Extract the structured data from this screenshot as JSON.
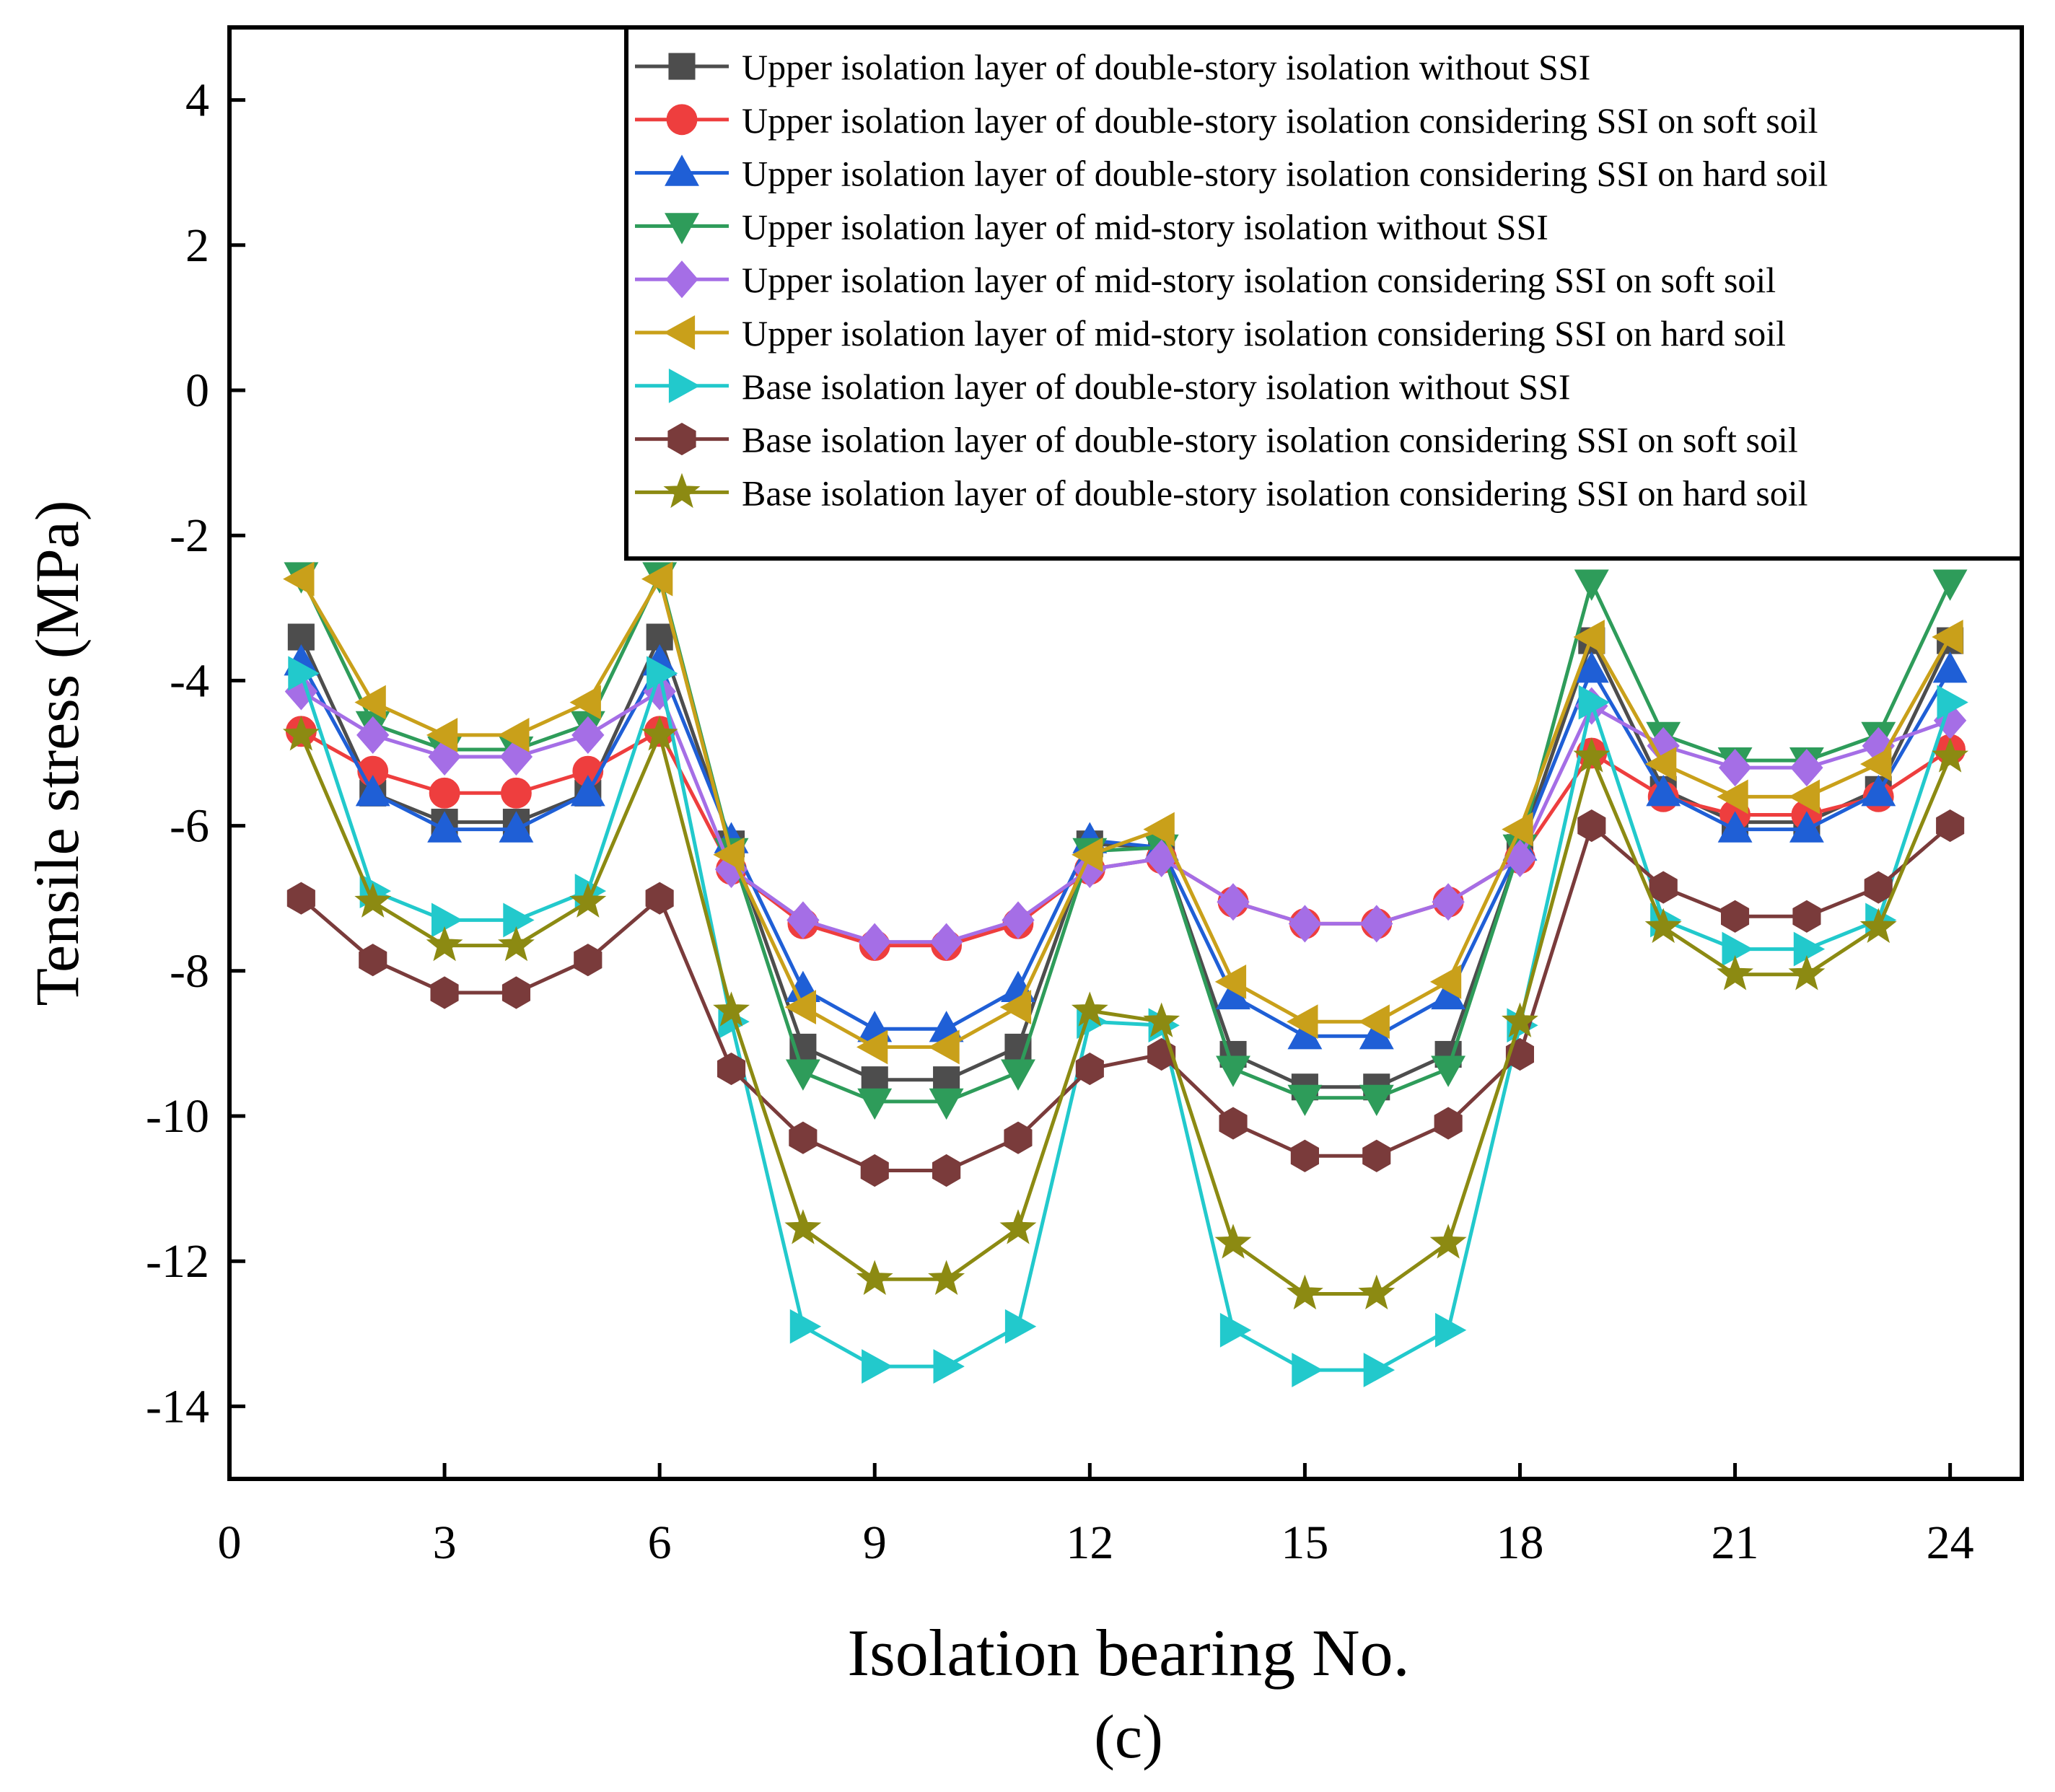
{
  "chart_data": {
    "type": "line",
    "xlabel": "Isolation bearing No.",
    "ylabel": "Tensile stress (MPa)",
    "caption": "(c)",
    "xlim": [
      0,
      25
    ],
    "ylim": [
      -15,
      5
    ],
    "xticks": [
      0,
      3,
      6,
      9,
      12,
      15,
      18,
      21,
      24
    ],
    "yticks": [
      4,
      2,
      0,
      -2,
      -4,
      -6,
      -8,
      -10,
      -12,
      -14
    ],
    "xtick_labels": [
      "0",
      "3",
      "6",
      "9",
      "12",
      "15",
      "18",
      "21",
      "24"
    ],
    "ytick_labels": [
      "4",
      "2",
      "0",
      "-2",
      "-4",
      "-6",
      "-8",
      "-10",
      "-12",
      "-14"
    ],
    "legend_position": "top-right",
    "x": [
      1,
      2,
      3,
      4,
      5,
      6,
      7,
      8,
      9,
      10,
      11,
      12,
      13,
      14,
      15,
      16,
      17,
      18,
      19,
      20,
      21,
      22,
      23,
      24
    ],
    "series": [
      {
        "name": "Upper isolation layer of double-story isolation without SSI",
        "color": "#4d4d4d",
        "marker": "square",
        "values": [
          -3.4,
          -5.55,
          -5.95,
          -5.95,
          -5.55,
          -3.4,
          -6.25,
          -9.05,
          -9.5,
          -9.5,
          -9.05,
          -6.25,
          -6.3,
          -9.15,
          -9.6,
          -9.6,
          -9.15,
          -6.3,
          -3.45,
          -5.5,
          -5.95,
          -5.95,
          -5.5,
          -3.45
        ]
      },
      {
        "name": "Upper isolation layer of double-story isolation considering SSI on soft soil",
        "color": "#ee3e3e",
        "marker": "circle",
        "values": [
          -4.7,
          -5.25,
          -5.55,
          -5.55,
          -5.25,
          -4.7,
          -6.6,
          -7.35,
          -7.65,
          -7.65,
          -7.35,
          -6.6,
          -6.45,
          -7.05,
          -7.35,
          -7.35,
          -7.05,
          -6.45,
          -5.0,
          -5.6,
          -5.85,
          -5.85,
          -5.6,
          -4.95
        ]
      },
      {
        "name": "Upper isolation layer of double-story isolation considering SSI on hard soil",
        "color": "#1f5fd6",
        "marker": "triangle-up",
        "values": [
          -3.75,
          -5.55,
          -6.05,
          -6.05,
          -5.55,
          -3.75,
          -6.2,
          -8.25,
          -8.8,
          -8.8,
          -8.25,
          -6.2,
          -6.3,
          -8.35,
          -8.9,
          -8.9,
          -8.35,
          -6.3,
          -3.85,
          -5.55,
          -6.05,
          -6.05,
          -5.55,
          -3.85
        ]
      },
      {
        "name": "Upper isolation layer of mid-story isolation without SSI",
        "color": "#2e9c5a",
        "marker": "triangle-down",
        "values": [
          -2.55,
          -4.6,
          -4.95,
          -4.95,
          -4.6,
          -2.55,
          -6.35,
          -9.4,
          -9.8,
          -9.8,
          -9.4,
          -6.35,
          -6.3,
          -9.35,
          -9.75,
          -9.75,
          -9.35,
          -6.3,
          -2.65,
          -4.75,
          -5.1,
          -5.1,
          -4.75,
          -2.65
        ]
      },
      {
        "name": "Upper isolation layer of mid-story isolation considering SSI on soft soil",
        "color": "#a56ee6",
        "marker": "diamond",
        "values": [
          -4.15,
          -4.75,
          -5.05,
          -5.05,
          -4.75,
          -4.15,
          -6.6,
          -7.3,
          -7.6,
          -7.6,
          -7.3,
          -6.6,
          -6.45,
          -7.05,
          -7.35,
          -7.35,
          -7.05,
          -6.45,
          -4.35,
          -4.9,
          -5.2,
          -5.2,
          -4.9,
          -4.55
        ]
      },
      {
        "name": "Upper isolation layer of mid-story isolation considering SSI on hard soil",
        "color": "#c9a01a",
        "marker": "triangle-left",
        "values": [
          -2.6,
          -4.3,
          -4.75,
          -4.75,
          -4.3,
          -2.6,
          -6.4,
          -8.5,
          -9.05,
          -9.05,
          -8.5,
          -6.4,
          -6.05,
          -8.15,
          -8.7,
          -8.7,
          -8.15,
          -6.05,
          -3.4,
          -5.15,
          -5.6,
          -5.6,
          -5.15,
          -3.4
        ]
      },
      {
        "name": "Base isolation layer of  double-story isolation without SSI",
        "color": "#22c9cc",
        "marker": "triangle-right",
        "values": [
          -3.9,
          -6.9,
          -7.3,
          -7.3,
          -6.9,
          -3.9,
          -8.7,
          -12.9,
          -13.45,
          -13.45,
          -12.9,
          -8.7,
          -8.75,
          -12.95,
          -13.5,
          -13.5,
          -12.95,
          -8.75,
          -4.3,
          -7.3,
          -7.7,
          -7.7,
          -7.3,
          -4.3
        ]
      },
      {
        "name": "Base isolation layer of double-story isolation considering SSI on soft soil",
        "color": "#7a3b3b",
        "marker": "hexagon",
        "values": [
          -7.0,
          -7.85,
          -8.3,
          -8.3,
          -7.85,
          -7.0,
          -9.35,
          -10.3,
          -10.75,
          -10.75,
          -10.3,
          -9.35,
          -9.15,
          -10.1,
          -10.55,
          -10.55,
          -10.1,
          -9.15,
          -6.0,
          -6.85,
          -7.25,
          -7.25,
          -6.85,
          -6.0
        ]
      },
      {
        "name": "Base isolation layer of double-story isolation considering SSI on hard soil",
        "color": "#8c8a12",
        "marker": "star",
        "values": [
          -4.75,
          -7.05,
          -7.65,
          -7.65,
          -7.05,
          -4.75,
          -8.55,
          -11.55,
          -12.25,
          -12.25,
          -11.55,
          -8.55,
          -8.7,
          -11.75,
          -12.45,
          -12.45,
          -11.75,
          -8.7,
          -5.05,
          -7.4,
          -8.05,
          -8.05,
          -7.4,
          -5.05
        ]
      }
    ]
  }
}
